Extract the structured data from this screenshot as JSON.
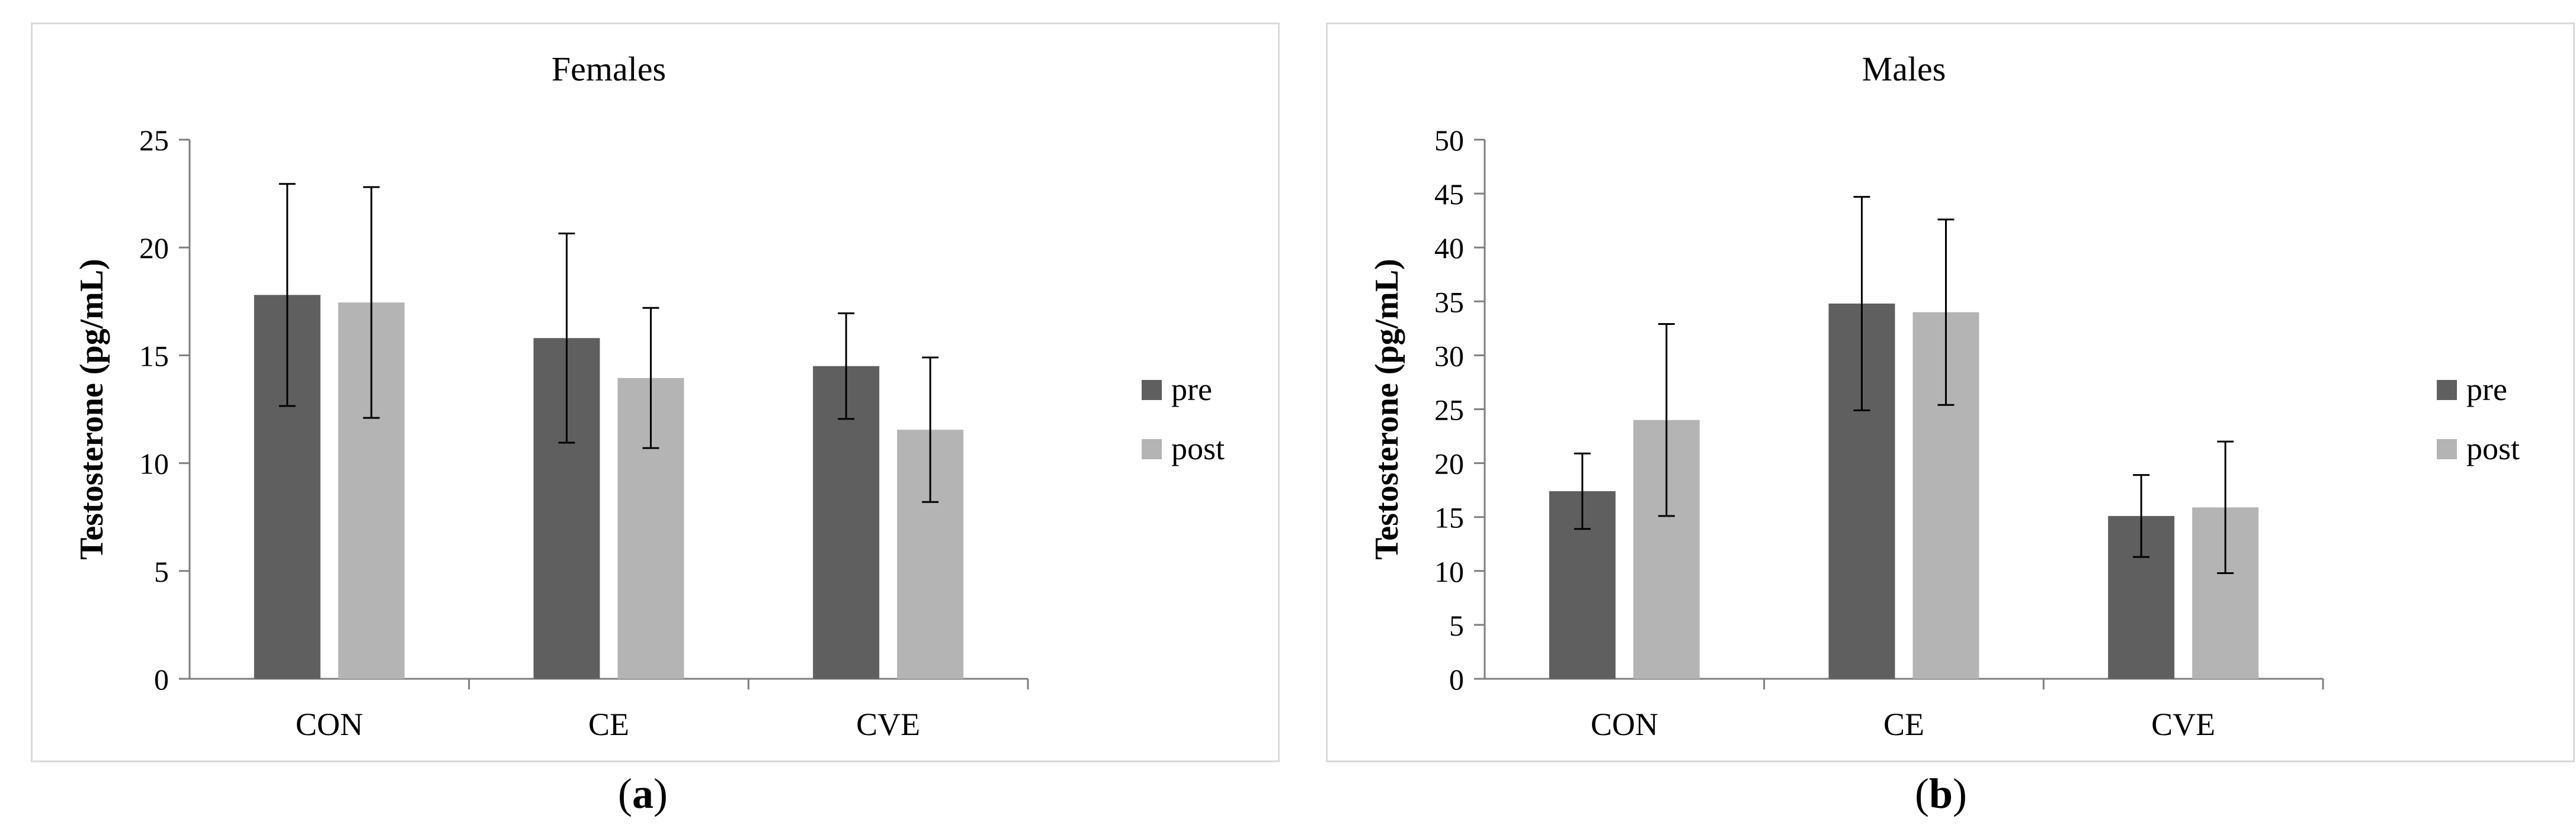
{
  "chart_data": [
    {
      "type": "bar",
      "title": "Females",
      "ylabel": "Testosterone (pg/mL)",
      "xlabel": "",
      "ylim": [
        0,
        25
      ],
      "yticks": [
        0,
        5,
        10,
        15,
        20,
        25
      ],
      "categories": [
        "CON",
        "CE",
        "CVE"
      ],
      "legend_position": "right",
      "series": [
        {
          "name": "pre",
          "color": "#5f5f5f",
          "values": [
            17.8,
            15.8,
            14.5
          ],
          "errors": [
            5.15,
            4.85,
            2.45
          ]
        },
        {
          "name": "post",
          "color": "#b4b4b4",
          "values": [
            17.45,
            13.95,
            11.55
          ],
          "errors": [
            5.35,
            3.25,
            3.35
          ]
        }
      ],
      "caption_label": "a"
    },
    {
      "type": "bar",
      "title": "Males",
      "ylabel": "Testosterone (pg/mL)",
      "xlabel": "",
      "ylim": [
        0,
        50
      ],
      "yticks": [
        0,
        5,
        10,
        15,
        20,
        25,
        30,
        35,
        40,
        45,
        50
      ],
      "categories": [
        "CON",
        "CE",
        "CVE"
      ],
      "legend_position": "right",
      "series": [
        {
          "name": "pre",
          "color": "#5f5f5f",
          "values": [
            17.4,
            34.8,
            15.1
          ],
          "errors": [
            3.5,
            9.9,
            3.8
          ]
        },
        {
          "name": "post",
          "color": "#b4b4b4",
          "values": [
            24.0,
            34.0,
            15.9
          ],
          "errors": [
            8.9,
            8.6,
            6.1
          ]
        }
      ],
      "caption_label": "b"
    }
  ]
}
